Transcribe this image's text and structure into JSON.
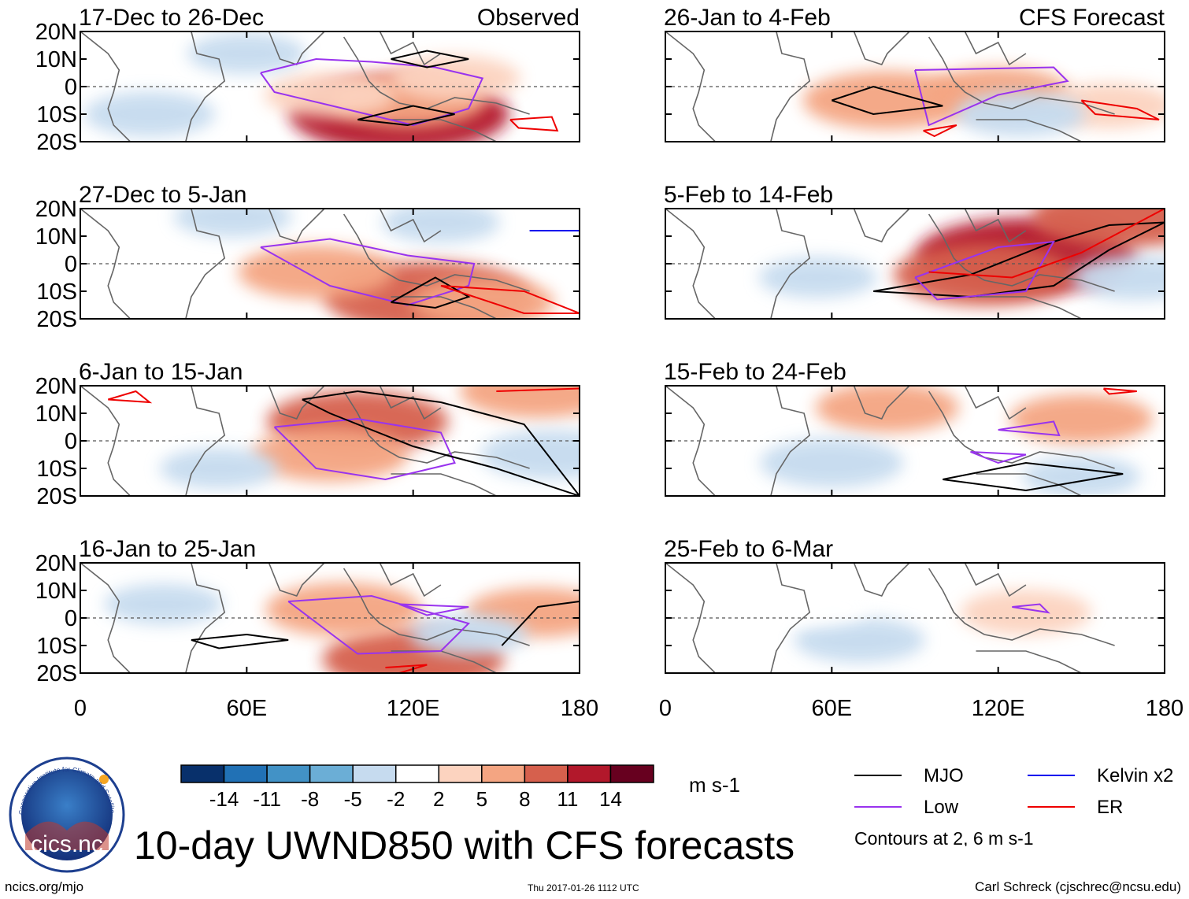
{
  "chart_data": {
    "type": "heatmap",
    "title": "10-day UWND850 with CFS forecasts",
    "variable": "850-hPa zonal wind anomaly",
    "units": "m s-1",
    "x_axis": {
      "range": [
        0,
        180
      ],
      "ticks": [
        0,
        60,
        120,
        180
      ],
      "tick_labels": [
        "0",
        "60E",
        "120E",
        "180"
      ]
    },
    "y_axis": {
      "range": [
        -20,
        20
      ],
      "ticks": [
        20,
        10,
        0,
        -10,
        -20
      ],
      "tick_labels": [
        "20N",
        "10N",
        "0",
        "10S",
        "20S"
      ]
    },
    "colorbar": {
      "levels": [
        -14,
        -11,
        -8,
        -5,
        -2,
        2,
        5,
        8,
        11,
        14
      ],
      "labels": [
        "-14",
        "-11",
        "-8",
        "-5",
        "-2",
        "2",
        "5",
        "8",
        "11",
        "14"
      ],
      "colors": [
        "#08306b",
        "#2171b5",
        "#4292c6",
        "#6baed6",
        "#c6dbef",
        "#ffffff",
        "#fcd3bf",
        "#f4a582",
        "#d6604d",
        "#b2182b",
        "#67001f"
      ],
      "units_label": "m s-1"
    },
    "panels": [
      {
        "title": "17-Dec to 26-Dec",
        "tag": "Observed",
        "anomalies": [
          {
            "lon": 115,
            "lat": -10,
            "value": 11
          },
          {
            "lon": 118,
            "lat": -5,
            "value": 6
          },
          {
            "lon": 90,
            "lat": -3,
            "value": 4
          },
          {
            "lon": 135,
            "lat": 3,
            "value": 4
          },
          {
            "lon": 25,
            "lat": -10,
            "value": -4
          },
          {
            "lon": 60,
            "lat": 12,
            "value": -3
          }
        ],
        "contours": [
          {
            "wave": "Low",
            "points": [
              [
                65,
                5
              ],
              [
                85,
                10
              ],
              [
                105,
                9
              ],
              [
                128,
                7
              ],
              [
                145,
                3
              ],
              [
                140,
                -8
              ],
              [
                120,
                -14
              ],
              [
                95,
                -8
              ],
              [
                70,
                -2
              ],
              [
                65,
                5
              ]
            ]
          },
          {
            "wave": "MJO",
            "points": [
              [
                112,
                10
              ],
              [
                125,
                13
              ],
              [
                140,
                10
              ],
              [
                125,
                7
              ],
              [
                112,
                10
              ]
            ]
          },
          {
            "wave": "MJO",
            "points": [
              [
                100,
                -12
              ],
              [
                120,
                -7
              ],
              [
                135,
                -10
              ],
              [
                118,
                -14
              ],
              [
                100,
                -12
              ]
            ]
          },
          {
            "wave": "ER",
            "points": [
              [
                155,
                -12
              ],
              [
                170,
                -11
              ],
              [
                172,
                -16
              ],
              [
                158,
                -15
              ],
              [
                155,
                -12
              ]
            ]
          }
        ]
      },
      {
        "title": "27-Dec to 5-Jan",
        "tag": "",
        "anomalies": [
          {
            "lon": 125,
            "lat": -12,
            "value": 10
          },
          {
            "lon": 85,
            "lat": -3,
            "value": 6
          },
          {
            "lon": 145,
            "lat": -14,
            "value": 5
          },
          {
            "lon": 55,
            "lat": 17,
            "value": -3
          },
          {
            "lon": 130,
            "lat": 15,
            "value": -3
          }
        ],
        "contours": [
          {
            "wave": "Low",
            "points": [
              [
                65,
                6
              ],
              [
                90,
                9
              ],
              [
                118,
                3
              ],
              [
                142,
                0
              ],
              [
                140,
                -8
              ],
              [
                118,
                -15
              ],
              [
                90,
                -8
              ],
              [
                65,
                6
              ]
            ]
          },
          {
            "wave": "MJO",
            "points": [
              [
                112,
                -14
              ],
              [
                128,
                -5
              ],
              [
                140,
                -12
              ],
              [
                128,
                -16
              ],
              [
                112,
                -14
              ]
            ]
          },
          {
            "wave": "ER",
            "points": [
              [
                130,
                -8
              ],
              [
                160,
                -10
              ],
              [
                180,
                -18
              ],
              [
                160,
                -18
              ],
              [
                130,
                -8
              ]
            ]
          },
          {
            "wave": "Kelvin x2",
            "points": [
              [
                162,
                12
              ],
              [
                180,
                12
              ]
            ]
          }
        ]
      },
      {
        "title": "6-Jan to 15-Jan",
        "tag": "",
        "anomalies": [
          {
            "lon": 100,
            "lat": 7,
            "value": 8
          },
          {
            "lon": 90,
            "lat": -5,
            "value": 6
          },
          {
            "lon": 165,
            "lat": 18,
            "value": 6
          },
          {
            "lon": 170,
            "lat": -5,
            "value": -5
          },
          {
            "lon": 50,
            "lat": -10,
            "value": -3
          }
        ],
        "contours": [
          {
            "wave": "Low",
            "points": [
              [
                70,
                5
              ],
              [
                100,
                8
              ],
              [
                130,
                3
              ],
              [
                135,
                -8
              ],
              [
                110,
                -14
              ],
              [
                85,
                -10
              ],
              [
                70,
                5
              ]
            ]
          },
          {
            "wave": "MJO",
            "points": [
              [
                80,
                15
              ],
              [
                100,
                18
              ],
              [
                130,
                14
              ],
              [
                160,
                6
              ],
              [
                180,
                -20
              ],
              [
                150,
                -10
              ],
              [
                120,
                -2
              ],
              [
                90,
                10
              ],
              [
                80,
                15
              ]
            ]
          },
          {
            "wave": "ER",
            "points": [
              [
                10,
                15
              ],
              [
                20,
                18
              ],
              [
                25,
                14
              ],
              [
                10,
                15
              ]
            ]
          },
          {
            "wave": "ER",
            "points": [
              [
                150,
                18
              ],
              [
                180,
                19
              ]
            ]
          }
        ]
      },
      {
        "title": "16-Jan to 25-Jan",
        "tag": "",
        "anomalies": [
          {
            "lon": 120,
            "lat": -15,
            "value": 8
          },
          {
            "lon": 95,
            "lat": 3,
            "value": 6
          },
          {
            "lon": 165,
            "lat": 2,
            "value": 5
          },
          {
            "lon": 30,
            "lat": 5,
            "value": -3
          },
          {
            "lon": 140,
            "lat": -6,
            "value": -3
          }
        ],
        "contours": [
          {
            "wave": "Low",
            "points": [
              [
                75,
                6
              ],
              [
                105,
                8
              ],
              [
                140,
                -2
              ],
              [
                130,
                -12
              ],
              [
                100,
                -13
              ],
              [
                75,
                6
              ]
            ]
          },
          {
            "wave": "Low",
            "points": [
              [
                115,
                5
              ],
              [
                140,
                4
              ],
              [
                125,
                1
              ],
              [
                115,
                5
              ]
            ]
          },
          {
            "wave": "MJO",
            "points": [
              [
                40,
                -8
              ],
              [
                60,
                -6
              ],
              [
                75,
                -8
              ],
              [
                50,
                -11
              ],
              [
                40,
                -8
              ]
            ]
          },
          {
            "wave": "MJO",
            "points": [
              [
                152,
                -10
              ],
              [
                165,
                4
              ],
              [
                180,
                6
              ]
            ]
          },
          {
            "wave": "ER",
            "points": [
              [
                110,
                -18
              ],
              [
                125,
                -17
              ],
              [
                115,
                -20
              ]
            ]
          }
        ]
      },
      {
        "title": "26-Jan to 4-Feb",
        "tag": "CFS Forecast",
        "anomalies": [
          {
            "lon": 80,
            "lat": -5,
            "value": 7
          },
          {
            "lon": 120,
            "lat": -2,
            "value": 5
          },
          {
            "lon": 160,
            "lat": -7,
            "value": 4
          },
          {
            "lon": 30,
            "lat": 8,
            "value": -2
          },
          {
            "lon": 128,
            "lat": -10,
            "value": -4
          }
        ],
        "contours": [
          {
            "wave": "Low",
            "points": [
              [
                90,
                6
              ],
              [
                140,
                7
              ],
              [
                145,
                2
              ],
              [
                120,
                -3
              ],
              [
                95,
                -14
              ],
              [
                90,
                6
              ]
            ]
          },
          {
            "wave": "MJO",
            "points": [
              [
                60,
                -5
              ],
              [
                75,
                0
              ],
              [
                100,
                -7
              ],
              [
                75,
                -10
              ],
              [
                60,
                -5
              ]
            ]
          },
          {
            "wave": "ER",
            "points": [
              [
                150,
                -5
              ],
              [
                170,
                -8
              ],
              [
                178,
                -12
              ],
              [
                155,
                -10
              ],
              [
                150,
                -5
              ]
            ]
          },
          {
            "wave": "ER",
            "points": [
              [
                93,
                -16
              ],
              [
                105,
                -14
              ],
              [
                97,
                -18
              ],
              [
                93,
                -16
              ]
            ]
          }
        ]
      },
      {
        "title": "5-Feb to 14-Feb",
        "tag": "",
        "anomalies": [
          {
            "lon": 130,
            "lat": 3,
            "value": 11
          },
          {
            "lon": 115,
            "lat": -4,
            "value": 8
          },
          {
            "lon": 165,
            "lat": 17,
            "value": 8
          },
          {
            "lon": 55,
            "lat": -5,
            "value": -3
          },
          {
            "lon": 170,
            "lat": -5,
            "value": -4
          }
        ],
        "contours": [
          {
            "wave": "MJO",
            "points": [
              [
                75,
                -10
              ],
              [
                110,
                -4
              ],
              [
                140,
                8
              ],
              [
                160,
                14
              ],
              [
                180,
                15
              ],
              [
                160,
                5
              ],
              [
                140,
                -8
              ],
              [
                110,
                -12
              ],
              [
                75,
                -10
              ]
            ]
          },
          {
            "wave": "Low",
            "points": [
              [
                90,
                -5
              ],
              [
                120,
                6
              ],
              [
                140,
                8
              ],
              [
                130,
                -10
              ],
              [
                98,
                -13
              ],
              [
                90,
                -5
              ]
            ]
          },
          {
            "wave": "ER",
            "points": [
              [
                95,
                -3
              ],
              [
                125,
                -5
              ],
              [
                150,
                4
              ],
              [
                180,
                20
              ]
            ]
          }
        ]
      },
      {
        "title": "15-Feb to 24-Feb",
        "tag": "",
        "anomalies": [
          {
            "lon": 80,
            "lat": 12,
            "value": 5
          },
          {
            "lon": 150,
            "lat": 8,
            "value": 5
          },
          {
            "lon": 60,
            "lat": -8,
            "value": -5
          },
          {
            "lon": 150,
            "lat": -13,
            "value": -3
          }
        ],
        "contours": [
          {
            "wave": "MJO",
            "points": [
              [
                100,
                -14
              ],
              [
                130,
                -8
              ],
              [
                165,
                -12
              ],
              [
                130,
                -18
              ],
              [
                100,
                -14
              ]
            ]
          },
          {
            "wave": "Low",
            "points": [
              [
                120,
                4
              ],
              [
                140,
                7
              ],
              [
                142,
                2
              ],
              [
                120,
                4
              ]
            ]
          },
          {
            "wave": "Low",
            "points": [
              [
                110,
                -4
              ],
              [
                130,
                -5
              ],
              [
                120,
                -8
              ],
              [
                110,
                -4
              ]
            ]
          },
          {
            "wave": "ER",
            "points": [
              [
                158,
                19
              ],
              [
                170,
                18
              ],
              [
                160,
                17
              ],
              [
                158,
                19
              ]
            ]
          }
        ]
      },
      {
        "title": "25-Feb to 6-Mar",
        "tag": "",
        "anomalies": [
          {
            "lon": 130,
            "lat": 2,
            "value": 4
          },
          {
            "lon": 70,
            "lat": -8,
            "value": -4
          },
          {
            "lon": 55,
            "lat": 4,
            "value": -2
          }
        ],
        "contours": [
          {
            "wave": "Low",
            "points": [
              [
                125,
                4
              ],
              [
                135,
                5
              ],
              [
                138,
                2
              ],
              [
                125,
                4
              ]
            ]
          }
        ]
      }
    ],
    "legend": {
      "items": [
        {
          "label": "MJO",
          "color": "#000000"
        },
        {
          "label": "Kelvin x2",
          "color": "#0000ee"
        },
        {
          "label": "Low",
          "color": "#9933ee"
        },
        {
          "label": "ER",
          "color": "#ee0000"
        }
      ],
      "note": "Contours at 2, 6 m s-1"
    }
  },
  "footer": {
    "left": "ncics.org/mjo",
    "center": "Thu 2017-01-26 1112 UTC",
    "right": "Carl Schreck (cjschrec@ncsu.edu)"
  },
  "logo": {
    "text": "cics.nc",
    "ring_text": "Cooperative Institute for Climate and Satellites"
  }
}
